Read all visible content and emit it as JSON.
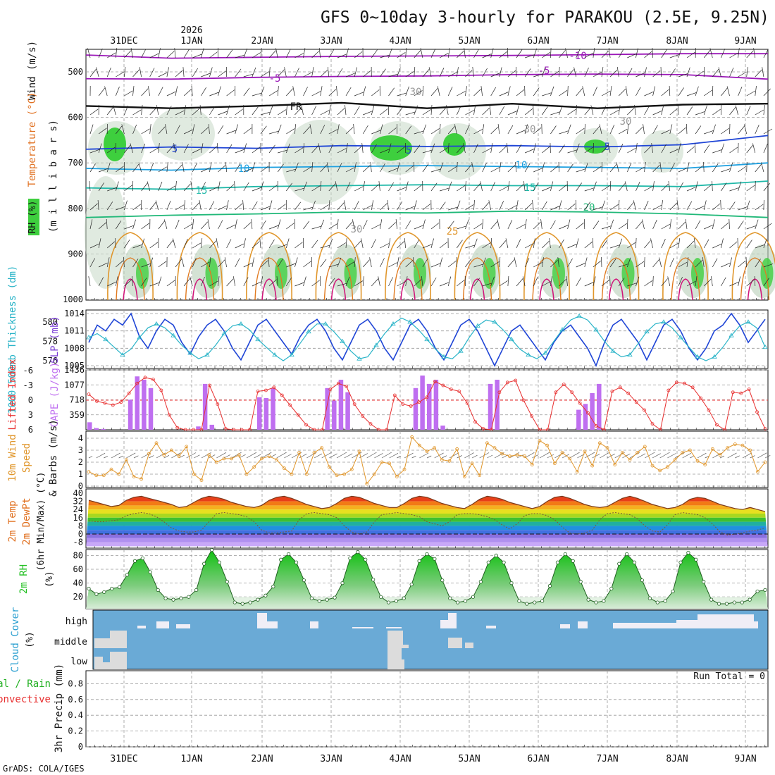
{
  "title": "GFS 0~10day 3-hourly for PARAKOU (2.5E, 9.25N)",
  "year_label": "2026",
  "footer": "GrADS: COLA/IGES",
  "run_total_label": "Run Total = 0",
  "colors": {
    "rh_green": "#3ecf3e",
    "cape_bar": "#bf6ff0",
    "lifted_index_line": "#e83030",
    "slp_line": "#1f45d6",
    "thickness_line": "#2ab4c8",
    "wind_speed_line": "#e0962b",
    "cloud_bg": "#6aaad6",
    "rh2m_fill": "#22c022"
  },
  "chart_data": [
    {
      "type": "line",
      "panel": "profile",
      "ylabel_parts": [
        "Wind (m/s)",
        "Temperature (°C)",
        "RH (%)",
        "(m i l l i b a r s)"
      ],
      "y_ticks": [
        "500",
        "600",
        "700",
        "800",
        "900",
        "1000"
      ],
      "x_ticks": [
        "31DEC",
        "1JAN",
        "2JAN",
        "3JAN",
        "4JAN",
        "5JAN",
        "6JAN",
        "7JAN",
        "8JAN",
        "9JAN"
      ],
      "series": [
        {
          "name": "-10",
          "values": [
            463,
            470,
            468,
            466,
            465,
            464,
            462,
            460,
            460
          ]
        },
        {
          "name": "-5",
          "values": [
            515,
            516,
            512,
            510,
            509,
            506,
            505,
            506,
            516
          ]
        },
        {
          "name": "FR",
          "values": [
            575,
            580,
            575,
            568,
            580,
            570,
            580,
            572,
            570
          ]
        },
        {
          "name": "5",
          "values": [
            670,
            665,
            668,
            662,
            664,
            662,
            665,
            660,
            640
          ]
        },
        {
          "name": "10",
          "values": [
            712,
            716,
            710,
            708,
            706,
            708,
            710,
            712,
            700
          ]
        },
        {
          "name": "15",
          "values": [
            755,
            758,
            752,
            750,
            748,
            750,
            750,
            752,
            740
          ]
        },
        {
          "name": "20",
          "values": [
            820,
            815,
            812,
            808,
            810,
            806,
            808,
            812,
            820
          ]
        }
      ],
      "labels_on_chart": [
        "-10",
        "-5",
        "FR",
        "5",
        "10",
        "15",
        "20",
        "25",
        "30"
      ]
    },
    {
      "type": "line",
      "panel": "slp_thickness",
      "ylabel_left": "1000-500mb Thickness (dm)",
      "ylabel_right": "SLP (mb)",
      "left_ticks": [
        "580",
        "578",
        "576"
      ],
      "right_ticks": [
        "1014",
        "1011",
        "1008",
        "1005"
      ],
      "series": [
        {
          "name": "SLP",
          "values": [
            1009,
            1012,
            1011,
            1013,
            1012,
            1014,
            1010,
            1008,
            1011,
            1013,
            1012,
            1009,
            1007,
            1010,
            1012,
            1013,
            1011,
            1008,
            1006,
            1009,
            1012,
            1013,
            1011,
            1009,
            1007,
            1010,
            1012,
            1013,
            1011,
            1008,
            1006,
            1009,
            1012,
            1013,
            1011,
            1008,
            1006,
            1009,
            1012,
            1013,
            1011,
            1008,
            1006,
            1009,
            1012,
            1013,
            1011,
            1008,
            1005,
            1008,
            1011,
            1012,
            1010,
            1008,
            1006,
            1009,
            1011,
            1012,
            1010,
            1008,
            1005,
            1009,
            1012,
            1013,
            1011,
            1009,
            1006,
            1009,
            1012,
            1013,
            1011,
            1008,
            1006,
            1008,
            1011,
            1012,
            1014,
            1012,
            1009,
            1011,
            1013
          ]
        },
        {
          "name": "Thickness",
          "values": [
            578.4,
            578.8,
            578.2,
            577.4,
            576.6,
            577.2,
            578.4,
            579.4,
            579.8,
            579.4,
            578.6,
            577.6,
            576.8,
            576.2,
            576.6,
            577.6,
            578.8,
            579.6,
            579.8,
            579.2,
            578.2,
            577.4,
            576.6,
            576.0,
            576.6,
            577.8,
            579.0,
            579.8,
            579.8,
            579.0,
            578.0,
            577.0,
            576.2,
            576.4,
            577.6,
            578.8,
            579.8,
            580.4,
            580.0,
            579.2,
            578.2,
            577.2,
            576.4,
            576.2,
            577.0,
            578.4,
            579.6,
            580.2,
            580.0,
            579.2,
            578.2,
            577.2,
            576.6,
            576.2,
            576.8,
            578.0,
            579.2,
            580.2,
            580.6,
            580.2,
            579.2,
            578.0,
            577.0,
            576.4,
            576.6,
            577.8,
            579.0,
            579.8,
            580.0,
            579.4,
            578.4,
            577.4,
            576.4,
            576.0,
            576.4,
            577.4,
            578.6,
            579.6,
            580.0,
            579.4,
            577.4
          ]
        }
      ]
    },
    {
      "type": "bar",
      "panel": "cape_li",
      "ylabel_left": "Lifted Index",
      "ylabel_right": "CAPE (J/kg)",
      "left_ticks": [
        "-6",
        "-3",
        "0",
        "3",
        "6"
      ],
      "right_ticks": [
        "1436",
        "1077",
        "718",
        "359"
      ],
      "series": [
        {
          "name": "CAPE",
          "values": [
            180,
            40,
            20,
            0,
            0,
            0,
            720,
            1280,
            1200,
            1000,
            0,
            0,
            0,
            0,
            0,
            0,
            80,
            1100,
            120,
            0,
            0,
            0,
            0,
            0,
            0,
            780,
            760,
            1000,
            0,
            0,
            0,
            0,
            0,
            0,
            0,
            1000,
            700,
            1200,
            900,
            0,
            0,
            0,
            0,
            0,
            0,
            0,
            0,
            0,
            1000,
            1300,
            1100,
            1200,
            100,
            0,
            0,
            0,
            0,
            0,
            0,
            1100,
            1200,
            0,
            0,
            0,
            0,
            0,
            0,
            0,
            0,
            0,
            0,
            0,
            480,
            620,
            880,
            1100,
            0,
            0,
            0,
            0,
            0,
            0,
            0,
            0,
            0,
            0,
            0,
            0,
            0,
            0,
            0,
            0,
            0,
            0,
            0,
            0,
            0,
            0,
            0,
            0
          ]
        },
        {
          "name": "LI",
          "values": [
            -1.2,
            0.2,
            0.6,
            1.0,
            0.4,
            -1.4,
            -3.4,
            -4.6,
            -4.2,
            -2.0,
            3.0,
            5.6,
            6.0,
            6.0,
            6.0,
            -3.0,
            0.8,
            5.8,
            6.0,
            6.0,
            6.0,
            -1.8,
            -2.0,
            -2.6,
            -1.0,
            1.0,
            3.0,
            5.0,
            6.0,
            6.0,
            -2.2,
            -3.4,
            -2.8,
            0.8,
            3.2,
            4.8,
            6.0,
            6.0,
            -1.0,
            0.8,
            1.2,
            0.4,
            -0.6,
            -3.8,
            -3.0,
            -2.2,
            -1.8,
            0.6,
            4.4,
            5.8,
            6.0,
            -1.6,
            -3.6,
            -4.0,
            0.0,
            3.2,
            6.0,
            6.0,
            -1.6,
            -3.2,
            -1.6,
            0.6,
            2.6,
            5.2,
            6.0,
            -1.8,
            -2.6,
            -1.4,
            0.4,
            2.0,
            4.8,
            6.0,
            -2.0,
            -3.6,
            -3.4,
            -2.6,
            -0.4,
            2.0,
            5.0,
            6.0,
            -1.6,
            -1.4,
            -2.2,
            2.4,
            5.8
          ]
        }
      ]
    },
    {
      "type": "line",
      "panel": "wind10m",
      "ylabel": "10m Wind Speed & Barbs (m/s)",
      "y_ticks": [
        "4",
        "3",
        "2",
        "1",
        "0"
      ],
      "series": [
        {
          "name": "Speed",
          "values": [
            1.2,
            0.9,
            0.9,
            1.4,
            1.0,
            2.2,
            0.8,
            0.6,
            2.7,
            3.6,
            2.6,
            3.0,
            2.5,
            3.3,
            1.0,
            0.5,
            2.6,
            2.0,
            2.3,
            2.3,
            2.6,
            1.0,
            1.6,
            2.3,
            2.5,
            2.2,
            1.5,
            1.0,
            2.8,
            1.0,
            2.8,
            3.2,
            1.6,
            0.9,
            1.0,
            1.4,
            2.9,
            0.2,
            1.0,
            2.0,
            1.9,
            0.8,
            1.4,
            4.1,
            3.4,
            2.9,
            3.2,
            2.2,
            2.1,
            3.1,
            0.8,
            1.9,
            0.9,
            3.6,
            3.2,
            2.7,
            2.5,
            2.6,
            2.5,
            1.8,
            3.8,
            3.4,
            1.9,
            2.8,
            2.3,
            1.2,
            2.9,
            1.7,
            3.6,
            3.2,
            1.8,
            2.8,
            2.2,
            2.8,
            3.3,
            1.7,
            1.3,
            1.6,
            2.2,
            2.8,
            3.0,
            2.1,
            1.8,
            3.1,
            2.6,
            3.2,
            3.5,
            3.4,
            3.0,
            1.2,
            2.0
          ]
        }
      ]
    },
    {
      "type": "area",
      "panel": "temp2m",
      "ylabel": "2m Temp 2m DewPt (6hr Min/Max) (°C)",
      "y_ticks": [
        "40",
        "32",
        "24",
        "16",
        "8",
        "0",
        "-8"
      ],
      "series": [
        {
          "name": "Temp",
          "values": [
            33,
            31,
            29,
            27,
            28,
            33,
            36,
            37,
            35,
            33,
            31,
            29,
            26,
            27,
            31,
            35,
            37,
            36,
            34,
            31,
            29,
            27,
            26,
            28,
            33,
            36,
            37,
            35,
            32,
            29,
            27,
            25,
            26,
            30,
            35,
            37,
            36,
            33,
            30,
            28,
            26,
            26,
            30,
            35,
            37,
            36,
            33,
            30,
            28,
            26,
            25,
            29,
            34,
            37,
            36,
            34,
            31,
            29,
            27,
            25,
            27,
            32,
            36,
            37,
            35,
            32,
            29,
            27,
            26,
            27,
            31,
            35,
            37,
            35,
            32,
            29,
            27,
            25,
            26,
            29,
            34,
            36,
            35,
            32,
            29,
            27,
            25,
            24,
            26,
            24,
            22
          ]
        },
        {
          "name": "DewPt",
          "values": [
            13,
            12,
            12,
            13,
            14,
            18,
            20,
            21,
            20,
            17,
            12,
            6,
            3,
            2,
            2,
            4,
            12,
            20,
            21,
            20,
            19,
            17,
            12,
            4,
            1,
            1,
            2,
            3,
            14,
            20,
            21,
            20,
            19,
            16,
            8,
            2,
            0,
            2,
            12,
            19,
            20,
            21,
            20,
            19,
            17,
            12,
            10,
            8,
            12,
            19,
            20,
            20,
            19,
            17,
            14,
            9,
            5,
            10,
            18,
            20,
            20,
            18,
            14,
            7,
            1,
            0,
            1,
            4,
            14,
            20,
            21,
            20,
            19,
            15,
            8,
            3,
            2,
            9,
            19,
            21,
            20,
            19,
            16,
            10,
            2,
            -1,
            0,
            1,
            3,
            4,
            6
          ]
        }
      ]
    },
    {
      "type": "area",
      "panel": "rh2m",
      "ylabel": "2m RH (%)",
      "y_ticks": [
        "80",
        "60",
        "40",
        "20"
      ],
      "series": [
        {
          "name": "RH",
          "values": [
            32,
            24,
            27,
            32,
            34,
            52,
            72,
            76,
            56,
            30,
            18,
            16,
            18,
            20,
            30,
            68,
            88,
            70,
            42,
            12,
            10,
            12,
            16,
            22,
            35,
            74,
            82,
            70,
            44,
            18,
            14,
            16,
            19,
            40,
            76,
            85,
            74,
            45,
            20,
            12,
            14,
            18,
            38,
            72,
            82,
            75,
            44,
            18,
            12,
            14,
            20,
            42,
            70,
            80,
            70,
            40,
            14,
            10,
            12,
            14,
            36,
            70,
            82,
            72,
            42,
            16,
            12,
            14,
            32,
            68,
            82,
            70,
            44,
            18,
            12,
            14,
            28,
            70,
            84,
            74,
            42,
            16,
            10,
            10,
            12,
            12,
            16,
            28,
            30
          ]
        }
      ]
    },
    {
      "type": "area",
      "panel": "cloud",
      "ylabel": "Cloud Cover (%)",
      "level_labels": [
        "high",
        "middle",
        "low"
      ]
    },
    {
      "type": "bar",
      "panel": "precip",
      "ylabel_left_parts": [
        "Total / Rain",
        "Convective"
      ],
      "ylabel": "3hr Precip (mm)",
      "y_ticks": [
        "0.8",
        "0.6",
        "0.4",
        "0.2",
        "0"
      ],
      "series": [
        {
          "name": "Total",
          "values": []
        }
      ]
    }
  ]
}
